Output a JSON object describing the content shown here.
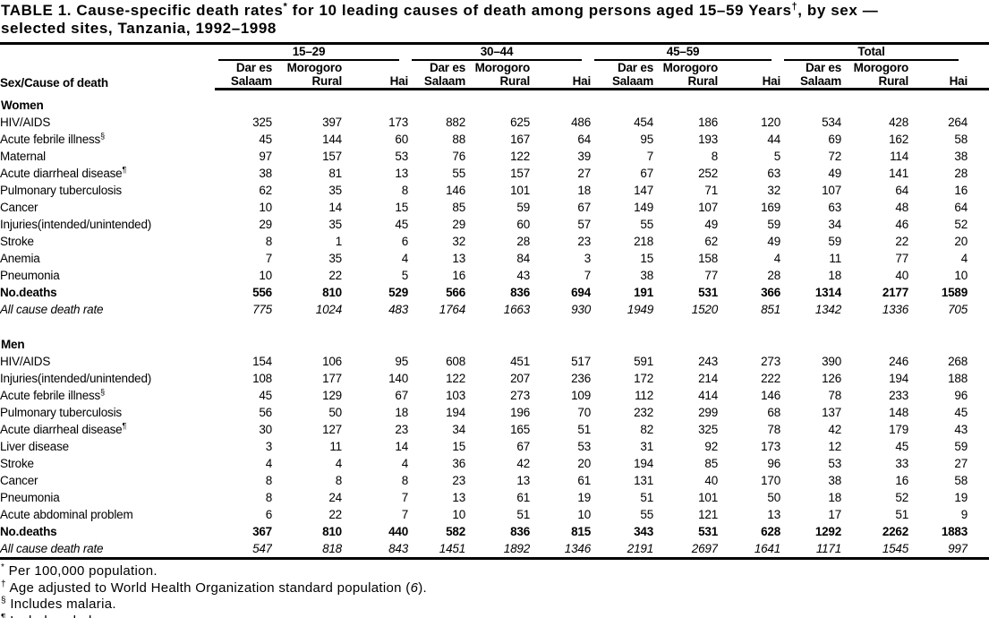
{
  "title": {
    "segments": [
      {
        "text": "TABLE 1. Cause-specific death rates",
        "sup": false
      },
      {
        "text": "*",
        "sup": true
      },
      {
        "text": " for 10 leading causes of death among persons aged 15–59 Years",
        "sup": false
      },
      {
        "text": "†",
        "sup": true
      },
      {
        "text": ", by sex —",
        "sup": false
      },
      {
        "text": "\n",
        "sup": false
      },
      {
        "text": "selected sites, Tanzania, 1992–1998",
        "sup": false
      }
    ]
  },
  "table": {
    "stub_header": "Sex/Cause of death",
    "age_groups": [
      "15–29",
      "30–44",
      "45–59",
      "Total"
    ],
    "sites": [
      {
        "line1": "Dar es",
        "line2": "Salaam"
      },
      {
        "line1": "Morogoro",
        "line2": "Rural"
      },
      {
        "line1": "",
        "line2": "Hai"
      }
    ],
    "sections": [
      {
        "name": "Women",
        "rows": [
          {
            "label": "HIV/AIDS",
            "sup": "",
            "style": "normal",
            "values": [
              325,
              397,
              173,
              882,
              625,
              486,
              454,
              186,
              120,
              534,
              428,
              264
            ]
          },
          {
            "label": "Acute febrile illness",
            "sup": "§",
            "style": "normal",
            "values": [
              45,
              144,
              60,
              88,
              167,
              64,
              95,
              193,
              44,
              69,
              162,
              58
            ]
          },
          {
            "label": "Maternal",
            "sup": "",
            "style": "normal",
            "values": [
              97,
              157,
              53,
              76,
              122,
              39,
              7,
              8,
              5,
              72,
              114,
              38
            ]
          },
          {
            "label": "Acute diarrheal disease",
            "sup": "¶",
            "style": "normal",
            "values": [
              38,
              81,
              13,
              55,
              157,
              27,
              67,
              252,
              63,
              49,
              141,
              28
            ]
          },
          {
            "label": "Pulmonary tuberculosis",
            "sup": "",
            "style": "normal",
            "values": [
              62,
              35,
              8,
              146,
              101,
              18,
              147,
              71,
              32,
              107,
              64,
              16
            ]
          },
          {
            "label": "Cancer",
            "sup": "",
            "style": "normal",
            "values": [
              10,
              14,
              15,
              85,
              59,
              67,
              149,
              107,
              169,
              63,
              48,
              64
            ]
          },
          {
            "label": "Injuries(intended/unintended)",
            "sup": "",
            "style": "normal",
            "values": [
              29,
              35,
              45,
              29,
              60,
              57,
              55,
              49,
              59,
              34,
              46,
              52
            ]
          },
          {
            "label": "Stroke",
            "sup": "",
            "style": "normal",
            "values": [
              8,
              1,
              6,
              32,
              28,
              23,
              218,
              62,
              49,
              59,
              22,
              20
            ]
          },
          {
            "label": "Anemia",
            "sup": "",
            "style": "normal",
            "values": [
              7,
              35,
              4,
              13,
              84,
              3,
              15,
              158,
              4,
              11,
              77,
              4
            ]
          },
          {
            "label": "Pneumonia",
            "sup": "",
            "style": "normal",
            "values": [
              10,
              22,
              5,
              16,
              43,
              7,
              38,
              77,
              28,
              18,
              40,
              10
            ]
          },
          {
            "label": "No.deaths",
            "sup": "",
            "style": "bold",
            "values": [
              556,
              810,
              529,
              566,
              836,
              694,
              191,
              531,
              366,
              1314,
              2177,
              1589
            ]
          },
          {
            "label": "All cause death rate",
            "sup": "",
            "style": "italic",
            "values": [
              775,
              1024,
              483,
              1764,
              1663,
              930,
              1949,
              1520,
              851,
              1342,
              1336,
              705
            ]
          }
        ]
      },
      {
        "name": "Men",
        "rows": [
          {
            "label": "HIV/AIDS",
            "sup": "",
            "style": "normal",
            "values": [
              154,
              106,
              95,
              608,
              451,
              517,
              591,
              243,
              273,
              390,
              246,
              268
            ]
          },
          {
            "label": "Injuries(intended/unintended)",
            "sup": "",
            "style": "normal",
            "values": [
              108,
              177,
              140,
              122,
              207,
              236,
              172,
              214,
              222,
              126,
              194,
              188
            ]
          },
          {
            "label": "Acute febrile illness",
            "sup": "§",
            "style": "normal",
            "values": [
              45,
              129,
              67,
              103,
              273,
              109,
              112,
              414,
              146,
              78,
              233,
              96
            ]
          },
          {
            "label": "Pulmonary tuberculosis",
            "sup": "",
            "style": "normal",
            "values": [
              56,
              50,
              18,
              194,
              196,
              70,
              232,
              299,
              68,
              137,
              148,
              45
            ]
          },
          {
            "label": "Acute diarrheal disease",
            "sup": "¶",
            "style": "normal",
            "values": [
              30,
              127,
              23,
              34,
              165,
              51,
              82,
              325,
              78,
              42,
              179,
              43
            ]
          },
          {
            "label": "Liver disease",
            "sup": "",
            "style": "normal",
            "values": [
              3,
              11,
              14,
              15,
              67,
              53,
              31,
              92,
              173,
              12,
              45,
              59
            ]
          },
          {
            "label": "Stroke",
            "sup": "",
            "style": "normal",
            "values": [
              4,
              4,
              4,
              36,
              42,
              20,
              194,
              85,
              96,
              53,
              33,
              27
            ]
          },
          {
            "label": "Cancer",
            "sup": "",
            "style": "normal",
            "values": [
              8,
              8,
              8,
              23,
              13,
              61,
              131,
              40,
              170,
              38,
              16,
              58
            ]
          },
          {
            "label": "Pneumonia",
            "sup": "",
            "style": "normal",
            "values": [
              8,
              24,
              7,
              13,
              61,
              19,
              51,
              101,
              50,
              18,
              52,
              19
            ]
          },
          {
            "label": "Acute abdominal problem",
            "sup": "",
            "style": "normal",
            "values": [
              6,
              22,
              7,
              10,
              51,
              10,
              55,
              121,
              13,
              17,
              51,
              9
            ]
          },
          {
            "label": "No.deaths",
            "sup": "",
            "style": "bold",
            "values": [
              367,
              810,
              440,
              582,
              836,
              815,
              343,
              531,
              628,
              1292,
              2262,
              1883
            ]
          },
          {
            "label": "All cause death rate",
            "sup": "",
            "style": "italic",
            "values": [
              547,
              818,
              843,
              1451,
              1892,
              1346,
              2191,
              2697,
              1641,
              1171,
              1545,
              997
            ]
          }
        ]
      }
    ]
  },
  "footnotes": [
    {
      "marker": "*",
      "segments": [
        {
          "text": "Per 100,000 population.",
          "italic": false
        }
      ]
    },
    {
      "marker": "†",
      "segments": [
        {
          "text": "Age adjusted to World Health Organization standard population (",
          "italic": false
        },
        {
          "text": "6",
          "italic": true
        },
        {
          "text": ").",
          "italic": false
        }
      ]
    },
    {
      "marker": "§",
      "segments": [
        {
          "text": "Includes malaria.",
          "italic": false
        }
      ]
    },
    {
      "marker": "¶",
      "segments": [
        {
          "text": "Includes cholera.",
          "italic": false
        }
      ]
    }
  ],
  "colors": {
    "text": "#000000",
    "background": "#ffffff",
    "rule": "#000000"
  }
}
